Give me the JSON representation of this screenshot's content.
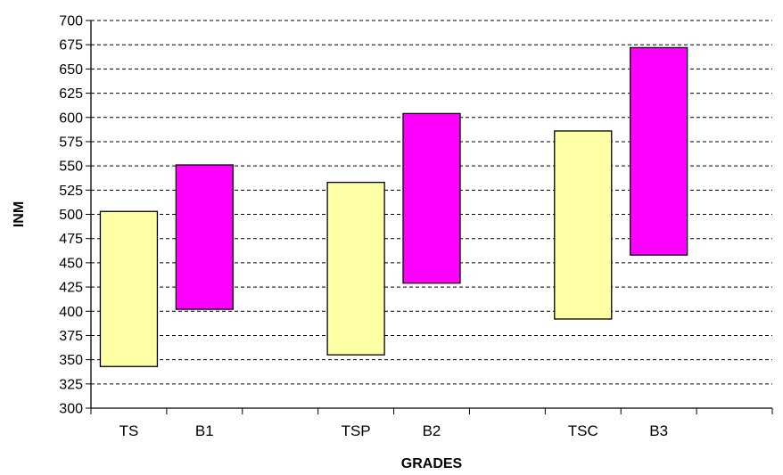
{
  "chart_data": {
    "type": "bar",
    "subtype": "floating-range",
    "title": "",
    "xlabel": "GRADES",
    "ylabel": "INM",
    "ylim": [
      300,
      700
    ],
    "y_ticks": [
      "300",
      "325",
      "350",
      "375",
      "400",
      "425",
      "450",
      "475",
      "500",
      "525",
      "550",
      "575",
      "600",
      "625",
      "650",
      "675",
      "700"
    ],
    "grid": true,
    "grid_style": "dashed",
    "legend": "none",
    "groups": [
      [
        "TS",
        "B1"
      ],
      [
        "TSP",
        "B2"
      ],
      [
        "TSC",
        "B3"
      ]
    ],
    "categories": [
      "TS",
      "B1",
      "TSP",
      "B2",
      "TSC",
      "B3"
    ],
    "series": [
      {
        "categories": [
          "TS",
          "TSP",
          "TSC"
        ],
        "low": [
          343,
          355,
          392
        ],
        "high": [
          503,
          533,
          586
        ],
        "color": "#FFFFA6"
      },
      {
        "categories": [
          "B1",
          "B2",
          "B3"
        ],
        "low": [
          402,
          429,
          458
        ],
        "high": [
          551,
          604,
          672
        ],
        "color": "#FF00FF"
      }
    ]
  }
}
